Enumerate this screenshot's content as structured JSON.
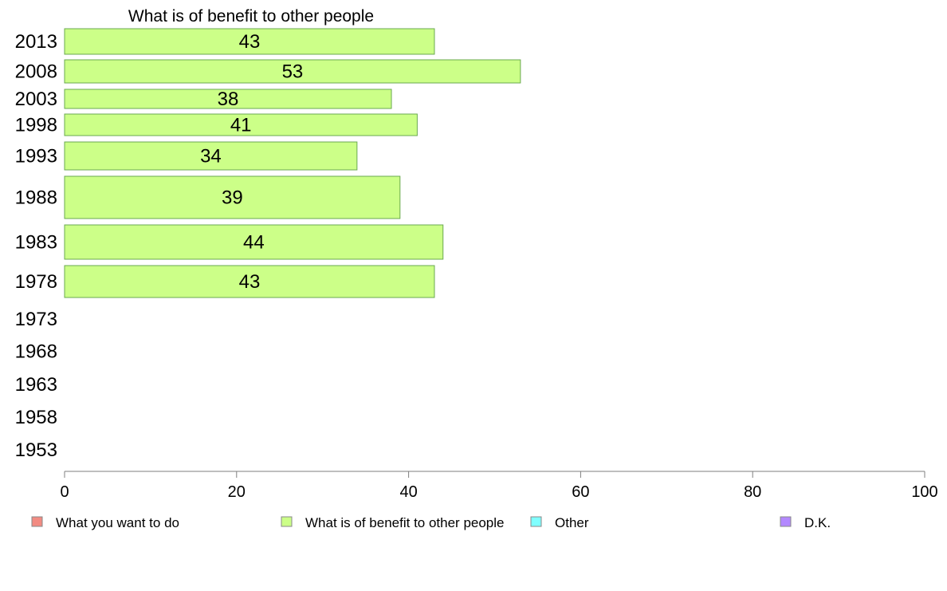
{
  "chart_data": {
    "type": "bar",
    "orientation": "horizontal",
    "title": "What is of benefit to other people",
    "categories": [
      "2013",
      "2008",
      "2003",
      "1998",
      "1993",
      "1988",
      "1983",
      "1978",
      "1973",
      "1968",
      "1963",
      "1958",
      "1953"
    ],
    "series": [
      {
        "name": "What is of benefit to other people",
        "values": [
          43,
          53,
          38,
          41,
          34,
          39,
          44,
          43,
          null,
          null,
          null,
          null,
          null
        ]
      }
    ],
    "xlim": [
      0,
      100
    ],
    "xticks": [
      0,
      20,
      40,
      60,
      80,
      100
    ],
    "grid": false,
    "legend": {
      "placement": "bottom",
      "entries": [
        {
          "label": "What you want to do",
          "color": "#f28b82"
        },
        {
          "label": "What is of benefit to other people",
          "color": "#ccff88"
        },
        {
          "label": "Other",
          "color": "#80ffff"
        },
        {
          "label": "D.K.",
          "color": "#b388ff"
        }
      ]
    },
    "bar_color": "#ccff88",
    "bar_stroke": "#6aa84f"
  }
}
